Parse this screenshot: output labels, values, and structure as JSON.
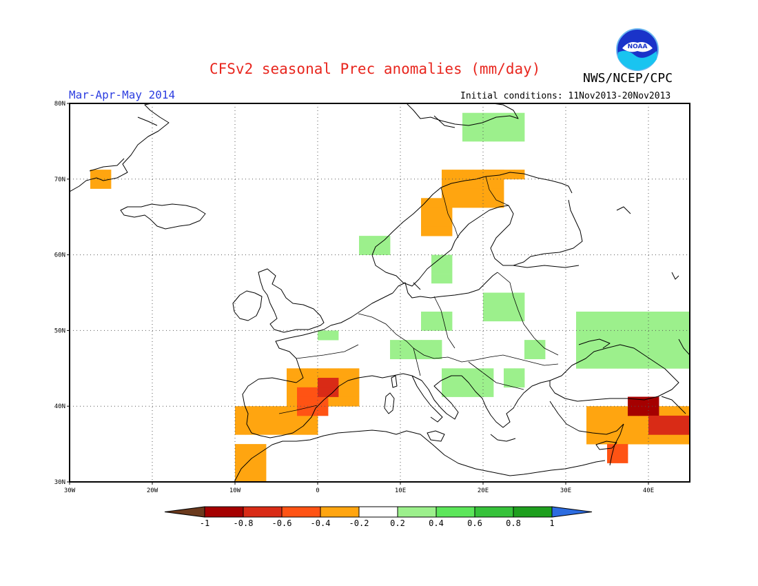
{
  "header": {
    "title": "CFSv2 seasonal Prec anomalies (mm/day)",
    "org": "NWS/NCEP/CPC",
    "season": "Mar-Apr-May 2014",
    "initial_conditions": "Initial conditions: 11Nov2013-20Nov2013",
    "logo_text": "NOAA"
  },
  "map": {
    "lon_range": [
      -30,
      45
    ],
    "lat_range": [
      30,
      80
    ],
    "lat_ticks": [
      "30N",
      "40N",
      "50N",
      "60N",
      "70N",
      "80N"
    ],
    "lon_ticks": [
      "30W",
      "20W",
      "10W",
      "0",
      "10E",
      "20E",
      "30E",
      "40E"
    ],
    "cell_deg": 1.25,
    "legend_bins": [
      {
        "range": "< -1",
        "color": "#6b3a1d"
      },
      {
        "range": "-1 to -0.8",
        "color": "#a50000"
      },
      {
        "range": "-0.8 to -0.6",
        "color": "#d92b16"
      },
      {
        "range": "-0.6 to -0.4",
        "color": "#ff5314"
      },
      {
        "range": "-0.4 to -0.2",
        "color": "#ffa510"
      },
      {
        "range": "-0.2 to 0.2",
        "color": "#ffffff"
      },
      {
        "range": "0.2 to 0.4",
        "color": "#9cf08c"
      },
      {
        "range": "0.4 to 0.6",
        "color": "#5ce65a"
      },
      {
        "range": "0.6 to 0.8",
        "color": "#36c23a"
      },
      {
        "range": "0.8 to 1",
        "color": "#1e9f1e"
      },
      {
        "range": "> 1",
        "color": "#2d6ce0"
      }
    ],
    "colorbar_labels": [
      "-1",
      "-0.8",
      "-0.6",
      "-0.4",
      "-0.2",
      "0.2",
      "0.4",
      "0.6",
      "0.8",
      "1"
    ],
    "anomaly_regions": [
      {
        "lon": [
          -26.3,
          -25
        ],
        "lat": [
          69,
          70.3
        ],
        "bin": "-0.4 to -0.2"
      },
      {
        "lon": [
          12.5,
          16
        ],
        "lat": [
          63.5,
          67.5
        ],
        "bin": "-0.4 to -0.2"
      },
      {
        "lon": [
          15,
          22.5
        ],
        "lat": [
          67,
          70.5
        ],
        "bin": "-0.4 to -0.2"
      },
      {
        "lon": [
          20,
          25
        ],
        "lat": [
          70,
          71
        ],
        "bin": "-0.4 to -0.2"
      },
      {
        "lon": [
          17.5,
          25
        ],
        "lat": [
          75.5,
          78.5
        ],
        "bin": "0.2 to 0.4"
      },
      {
        "lon": [
          5,
          8
        ],
        "lat": [
          60,
          61.8
        ],
        "bin": "0.2 to 0.4"
      },
      {
        "lon": [
          14,
          16
        ],
        "lat": [
          56.8,
          59.5
        ],
        "bin": "0.2 to 0.4"
      },
      {
        "lon": [
          21,
          25
        ],
        "lat": [
          52,
          54
        ],
        "bin": "0.2 to 0.4"
      },
      {
        "lon": [
          13.5,
          15.5
        ],
        "lat": [
          50,
          51.8
        ],
        "bin": "0.2 to 0.4"
      },
      {
        "lon": [
          0.5,
          2.5
        ],
        "lat": [
          49,
          50
        ],
        "bin": "0.2 to 0.4"
      },
      {
        "lon": [
          9,
          15
        ],
        "lat": [
          46.5,
          48.5
        ],
        "bin": "0.2 to 0.4"
      },
      {
        "lon": [
          15,
          21
        ],
        "lat": [
          41.5,
          44.5
        ],
        "bin": "0.2 to 0.4"
      },
      {
        "lon": [
          23.5,
          25
        ],
        "lat": [
          43.5,
          45
        ],
        "bin": "0.2 to 0.4"
      },
      {
        "lon": [
          25,
          27
        ],
        "lat": [
          46.5,
          48.5
        ],
        "bin": "0.2 to 0.4"
      },
      {
        "lon": [
          32,
          45
        ],
        "lat": [
          45,
          52
        ],
        "bin": "0.2 to 0.4"
      },
      {
        "lon": [
          -3,
          5
        ],
        "lat": [
          40,
          44
        ],
        "bin": "-0.4 to -0.2"
      },
      {
        "lon": [
          -9.5,
          -1
        ],
        "lat": [
          36.5,
          39.5
        ],
        "bin": "-0.4 to -0.2"
      },
      {
        "lon": [
          -10,
          -7
        ],
        "lat": [
          30,
          34.5
        ],
        "bin": "-0.4 to -0.2"
      },
      {
        "lon": [
          -1.5,
          1
        ],
        "lat": [
          39.5,
          41.5
        ],
        "bin": "-0.6 to -0.4"
      },
      {
        "lon": [
          1,
          2.5
        ],
        "lat": [
          41.5,
          42.8
        ],
        "bin": "-0.8 to -0.6"
      },
      {
        "lon": [
          33,
          45
        ],
        "lat": [
          35,
          40
        ],
        "bin": "-0.4 to -0.2"
      },
      {
        "lon": [
          38,
          41
        ],
        "lat": [
          39.5,
          40.3
        ],
        "bin": "-1 to -0.8"
      },
      {
        "lon": [
          41,
          45
        ],
        "lat": [
          36.5,
          38.3
        ],
        "bin": "-0.8 to -0.6"
      },
      {
        "lon": [
          35,
          36.5
        ],
        "lat": [
          33.5,
          35
        ],
        "bin": "-0.6 to -0.4"
      }
    ]
  }
}
